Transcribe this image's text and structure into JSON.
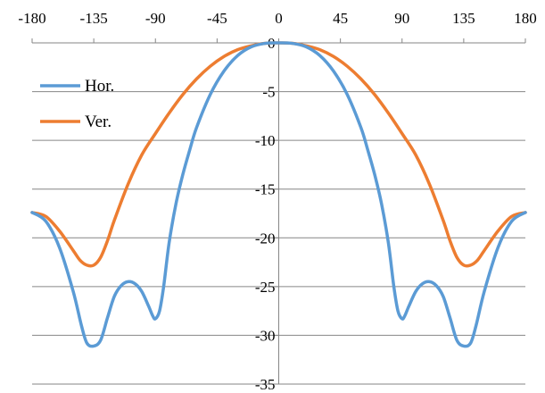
{
  "chart_data": {
    "type": "line",
    "title": "",
    "xlabel": "",
    "ylabel": "",
    "xlim": [
      -180,
      180
    ],
    "ylim": [
      -35,
      0
    ],
    "x_ticks": [
      -180,
      -135,
      -90,
      -45,
      0,
      45,
      90,
      135,
      180
    ],
    "y_ticks": [
      0,
      -5,
      -10,
      -15,
      -20,
      -25,
      -30,
      -35
    ],
    "grid": "horizontal",
    "legend_position": "top-left",
    "series": [
      {
        "name": "Hor.",
        "color": "#5B9BD5",
        "x": [
          -180,
          -170,
          -160,
          -150,
          -144,
          -140,
          -135,
          -130,
          -125,
          -120,
          -115,
          -110,
          -105,
          -100,
          -95,
          -92,
          -90,
          -87,
          -84,
          -80,
          -75,
          -70,
          -65,
          -60,
          -50,
          -40,
          -30,
          -20,
          -10,
          0,
          10,
          20,
          30,
          40,
          50,
          60,
          65,
          70,
          75,
          80,
          84,
          87,
          90,
          92,
          95,
          100,
          105,
          110,
          115,
          120,
          125,
          130,
          135,
          140,
          144,
          150,
          160,
          170,
          180
        ],
        "y": [
          -17.4,
          -18.3,
          -21,
          -25.5,
          -29,
          -30.8,
          -31.1,
          -30.5,
          -28.2,
          -26,
          -24.9,
          -24.5,
          -24.7,
          -25.5,
          -27,
          -28,
          -28.3,
          -27.5,
          -25,
          -20.5,
          -16.5,
          -13.5,
          -11,
          -8.7,
          -5.3,
          -2.9,
          -1.3,
          -0.4,
          -0.05,
          0,
          -0.05,
          -0.4,
          -1.3,
          -2.9,
          -5.3,
          -8.7,
          -11,
          -13.5,
          -16.5,
          -20.5,
          -25,
          -27.5,
          -28.3,
          -28,
          -27,
          -25.5,
          -24.7,
          -24.5,
          -24.9,
          -26,
          -28.2,
          -30.5,
          -31.1,
          -30.8,
          -29,
          -25.5,
          -21,
          -18.3,
          -17.4
        ]
      },
      {
        "name": "Ver.",
        "color": "#ED7D31",
        "x": [
          -180,
          -170,
          -160,
          -150,
          -145,
          -140,
          -135,
          -130,
          -125,
          -120,
          -110,
          -100,
          -90,
          -80,
          -70,
          -60,
          -50,
          -40,
          -30,
          -20,
          -10,
          0,
          10,
          20,
          30,
          40,
          50,
          60,
          70,
          80,
          90,
          100,
          110,
          120,
          125,
          130,
          135,
          140,
          145,
          150,
          160,
          170,
          180
        ],
        "y": [
          -17.4,
          -17.8,
          -19.3,
          -21.3,
          -22.3,
          -22.8,
          -22.8,
          -22,
          -20.3,
          -18.2,
          -14.5,
          -11.5,
          -9.3,
          -7.2,
          -5.3,
          -3.7,
          -2.4,
          -1.4,
          -0.7,
          -0.3,
          -0.05,
          0,
          -0.05,
          -0.3,
          -0.7,
          -1.4,
          -2.4,
          -3.7,
          -5.3,
          -7.2,
          -9.3,
          -11.5,
          -14.5,
          -18.2,
          -20.3,
          -22,
          -22.8,
          -22.8,
          -22.3,
          -21.3,
          -19.3,
          -17.8,
          -17.4
        ]
      }
    ]
  }
}
